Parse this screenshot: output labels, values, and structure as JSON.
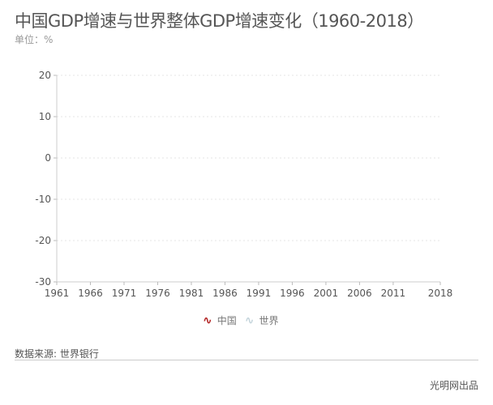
{
  "chart_data": {
    "type": "line",
    "title": "中国GDP增速与世界整体GDP增速变化（1960-2018）",
    "subtitle": "单位：%",
    "xlabel": "",
    "ylabel": "",
    "xlim": [
      1961,
      2018
    ],
    "ylim": [
      -30,
      20
    ],
    "x_ticks": [
      "1961",
      "1966",
      "1971",
      "1976",
      "1981",
      "1986",
      "1991",
      "1996",
      "2001",
      "2006",
      "2011",
      "2018"
    ],
    "y_ticks": [
      "20",
      "10",
      "0",
      "-10",
      "-20",
      "-30"
    ],
    "grid": true,
    "legend_position": "bottom",
    "series": [
      {
        "name": "中国",
        "color": "#b22222",
        "values": []
      },
      {
        "name": "世界",
        "color": "#c5d5dc",
        "values": []
      }
    ]
  },
  "footer": {
    "source": "数据来源: 世界银行",
    "credit": "光明网出品"
  }
}
